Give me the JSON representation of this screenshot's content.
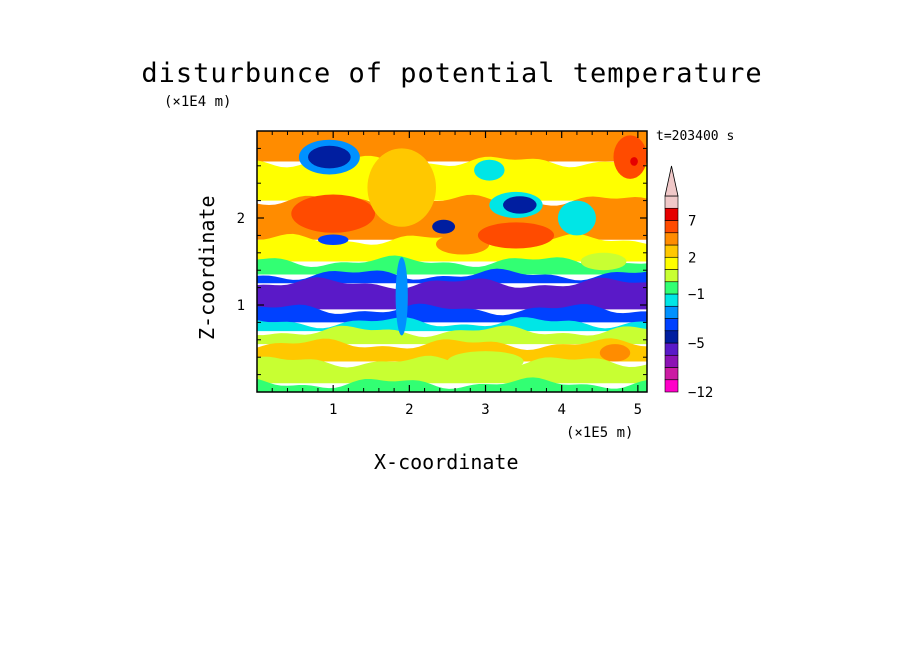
{
  "chart_data": {
    "type": "heatmap",
    "title": "disturbunce of potential temperature",
    "time_label": "t=203400 s",
    "xlabel": "X-coordinate",
    "ylabel": "Z-coordinate",
    "x_unit": "(×1E5 m)",
    "z_unit": "(×1E4 m)",
    "xlim": [
      0,
      5.12
    ],
    "ylim": [
      0,
      3.0
    ],
    "x_ticks": [
      "1",
      "2",
      "3",
      "4",
      "5"
    ],
    "y_ticks": [
      "1",
      "2"
    ],
    "colorbar": {
      "labels": [
        "7",
        "2",
        "−1",
        "−5",
        "−12"
      ],
      "levels": [
        -12,
        -10,
        -8,
        -6,
        -5,
        -4,
        -3,
        -2,
        -1,
        0,
        1,
        2,
        3,
        5,
        7,
        9,
        11
      ],
      "colors": [
        "#ff00c8",
        "#cc1ba3",
        "#8c12b4",
        "#5a19c8",
        "#001ea0",
        "#0041ff",
        "#0091ff",
        "#00e6e6",
        "#32ff73",
        "#c8ff32",
        "#ffff00",
        "#ffc800",
        "#ff8c00",
        "#ff4b00",
        "#e60000",
        "#f0c8c8"
      ],
      "extend": "max"
    },
    "bands": [
      {
        "z": [
          2.65,
          3.0
        ],
        "value": 3
      },
      {
        "z": [
          2.2,
          2.65
        ],
        "value": 1
      },
      {
        "z": [
          1.75,
          2.2
        ],
        "value": 4
      },
      {
        "z": [
          1.5,
          1.75
        ],
        "value": 1.5
      },
      {
        "z": [
          1.35,
          1.5
        ],
        "value": -0.5
      },
      {
        "z": [
          1.25,
          1.35
        ],
        "value": -3.5
      },
      {
        "z": [
          0.95,
          1.25
        ],
        "value": -5.5
      },
      {
        "z": [
          0.8,
          0.95
        ],
        "value": -3.5
      },
      {
        "z": [
          0.7,
          0.8
        ],
        "value": -1.5
      },
      {
        "z": [
          0.55,
          0.7
        ],
        "value": 0.5
      },
      {
        "z": [
          0.35,
          0.55
        ],
        "value": 2
      },
      {
        "z": [
          0.1,
          0.35
        ],
        "value": 0.5
      },
      {
        "z": [
          0.0,
          0.1
        ],
        "value": -0.5
      }
    ],
    "features": [
      {
        "x": 0.95,
        "z": 2.7,
        "rx": 0.4,
        "rz": 0.2,
        "value": -2.5
      },
      {
        "x": 0.95,
        "z": 2.7,
        "rx": 0.28,
        "rz": 0.13,
        "value": -4.5
      },
      {
        "x": 1.0,
        "z": 2.05,
        "rx": 0.55,
        "rz": 0.22,
        "value": 5.5
      },
      {
        "x": 1.0,
        "z": 1.75,
        "rx": 0.2,
        "rz": 0.06,
        "value": -3.5
      },
      {
        "x": 1.9,
        "z": 2.35,
        "rx": 0.45,
        "rz": 0.45,
        "value": 2.5
      },
      {
        "x": 2.45,
        "z": 1.9,
        "rx": 0.15,
        "rz": 0.08,
        "value": -4.5
      },
      {
        "x": 2.7,
        "z": 1.7,
        "rx": 0.35,
        "rz": 0.12,
        "value": 4
      },
      {
        "x": 3.05,
        "z": 2.55,
        "rx": 0.2,
        "rz": 0.12,
        "value": -2
      },
      {
        "x": 3.4,
        "z": 2.15,
        "rx": 0.35,
        "rz": 0.15,
        "value": -1.5
      },
      {
        "x": 3.45,
        "z": 2.15,
        "rx": 0.22,
        "rz": 0.1,
        "value": -4.5
      },
      {
        "x": 3.4,
        "z": 1.8,
        "rx": 0.5,
        "rz": 0.15,
        "value": 5.5
      },
      {
        "x": 4.2,
        "z": 2.0,
        "rx": 0.25,
        "rz": 0.2,
        "value": -1.5
      },
      {
        "x": 4.9,
        "z": 2.7,
        "rx": 0.22,
        "rz": 0.25,
        "value": 5.5
      },
      {
        "x": 4.95,
        "z": 2.65,
        "rx": 0.05,
        "rz": 0.05,
        "value": 7.5
      },
      {
        "x": 4.55,
        "z": 1.5,
        "rx": 0.3,
        "rz": 0.1,
        "value": 0.5
      },
      {
        "x": 3.0,
        "z": 0.35,
        "rx": 0.5,
        "rz": 0.12,
        "value": 0.5
      },
      {
        "x": 4.7,
        "z": 0.45,
        "rx": 0.2,
        "rz": 0.1,
        "value": 4
      },
      {
        "x": 1.9,
        "z": 1.1,
        "rx": 0.08,
        "rz": 0.45,
        "value": -2.5
      }
    ]
  }
}
